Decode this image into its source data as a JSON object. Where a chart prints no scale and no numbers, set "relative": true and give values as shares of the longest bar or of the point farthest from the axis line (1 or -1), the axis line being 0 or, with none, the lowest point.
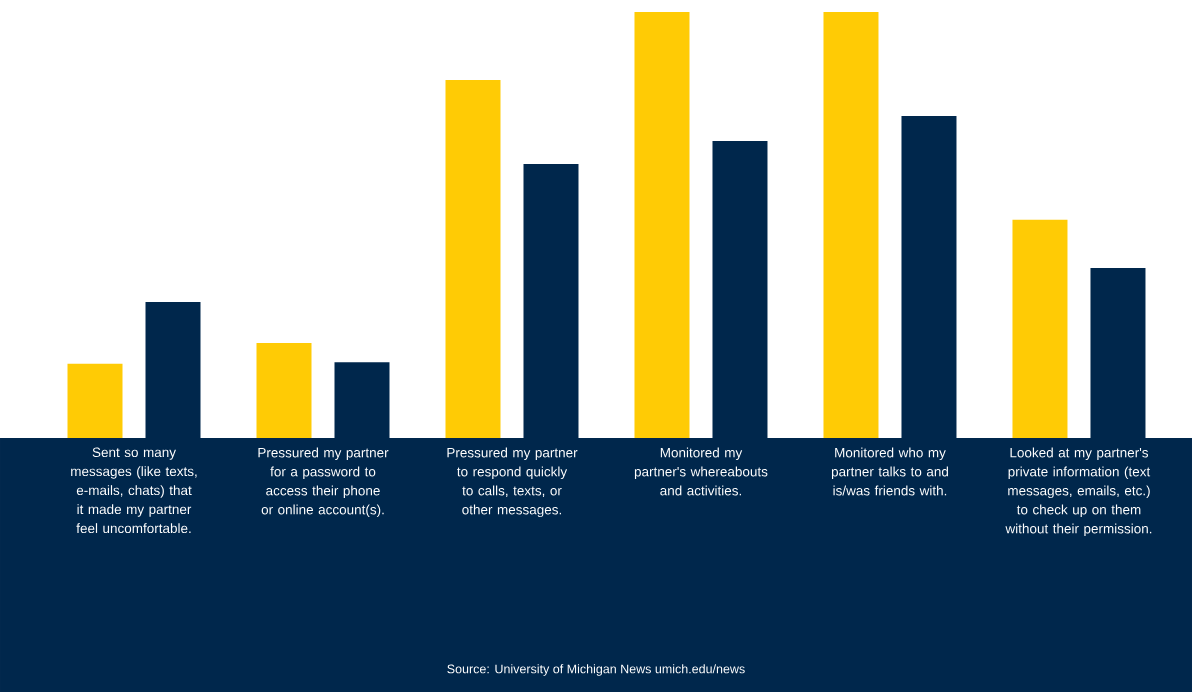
{
  "chart_data": {
    "type": "bar",
    "relative": true,
    "categories": [
      "Sent so many messages (like texts, e-mails, chats) that it made my partner feel uncomfortable.",
      "Pressured my partner for a password to access their phone or online account(s).",
      "Pressured my partner to respond quickly to calls, texts, or other messages.",
      "Monitored my partner's whereabouts and activities.",
      "Monitored who my partner talks to and is/was friends with.",
      "Looked at my partner's private information (text messages, emails, etc.) to check up on them without their permission."
    ],
    "series": [
      {
        "color": "#ffcb05",
        "values": [
          0.174,
          0.223,
          0.84,
          1.0,
          1.0,
          0.512
        ]
      },
      {
        "color": "#00274c",
        "values": [
          0.319,
          0.178,
          0.643,
          0.697,
          0.756,
          0.399
        ]
      }
    ],
    "annotations": [
      "Source: University of Michigan News umich.edu/news"
    ]
  }
}
